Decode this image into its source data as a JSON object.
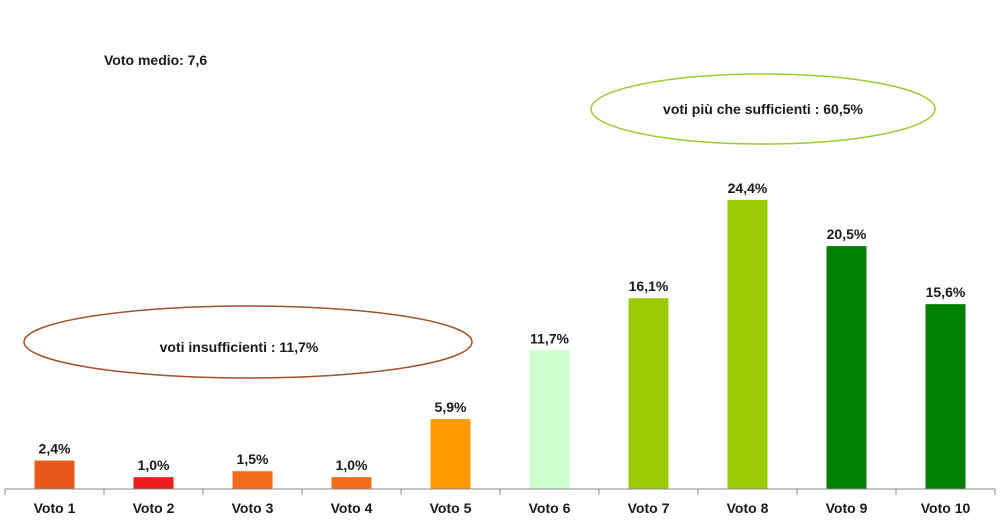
{
  "average_label": "Voto medio: 7,6",
  "chart_data": {
    "type": "bar",
    "categories": [
      "Voto 1",
      "Voto 2",
      "Voto 3",
      "Voto 4",
      "Voto 5",
      "Voto 6",
      "Voto 7",
      "Voto 8",
      "Voto 9",
      "Voto 10"
    ],
    "values": [
      2.4,
      1.0,
      1.5,
      1.0,
      5.9,
      11.7,
      16.1,
      24.4,
      20.5,
      15.6
    ],
    "value_labels": [
      "2,4%",
      "1,0%",
      "1,5%",
      "1,0%",
      "5,9%",
      "11,7%",
      "16,1%",
      "24,4%",
      "20,5%",
      "15,6%"
    ],
    "colors": [
      "#e8581a",
      "#ee1c1c",
      "#f26b18",
      "#f26b18",
      "#ff9900",
      "#ccffcc",
      "#99cc00",
      "#99cc00",
      "#008000",
      "#008000"
    ],
    "title": "",
    "xlabel": "",
    "ylabel": "",
    "ylim": [
      0,
      26
    ],
    "grid": false,
    "annotations": [
      {
        "text": "voti insufficienti : 11,7%",
        "shape": "ellipse",
        "stroke": "#a0522d"
      },
      {
        "text": "voti più che sufficienti : 60,5%",
        "shape": "ellipse",
        "stroke": "#99cc33"
      }
    ]
  }
}
